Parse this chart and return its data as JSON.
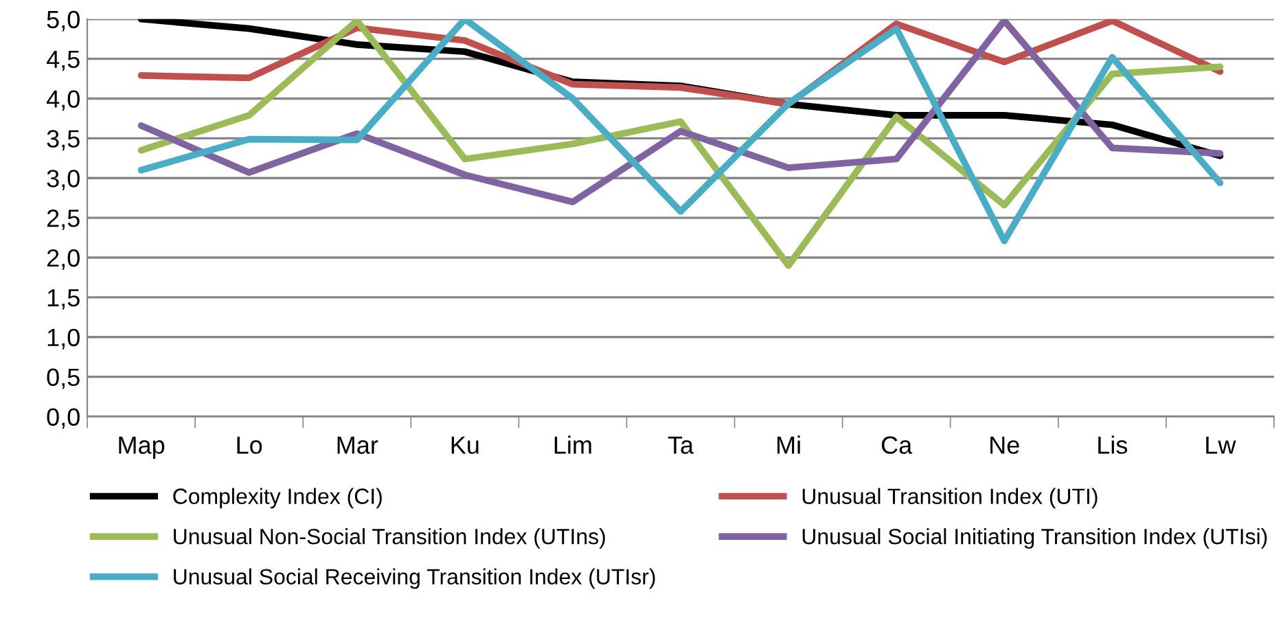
{
  "chart_data": {
    "type": "line",
    "categories": [
      "Map",
      "Lo",
      "Mar",
      "Ku",
      "Lim",
      "Ta",
      "Mi",
      "Ca",
      "Ne",
      "Lis",
      "Lw"
    ],
    "series": [
      {
        "name": "Complexity Index (CI)",
        "color": "#000000",
        "values": [
          5.0,
          4.88,
          4.68,
          4.59,
          4.21,
          4.16,
          3.93,
          3.79,
          3.79,
          3.67,
          3.28
        ]
      },
      {
        "name": "Unusual Transition Index (UTI)",
        "color": "#c0504d",
        "values": [
          4.29,
          4.26,
          4.89,
          4.73,
          4.18,
          4.14,
          3.93,
          4.94,
          4.46,
          4.98,
          4.34
        ]
      },
      {
        "name": "Unusual Non-Social Transition Index (UTIns)",
        "color": "#9bbb59",
        "values": [
          3.35,
          3.79,
          4.98,
          3.24,
          3.43,
          3.71,
          1.9,
          3.77,
          2.66,
          4.31,
          4.4
        ]
      },
      {
        "name": "Unusual Social Initiating Transition Index (UTIsi)",
        "color": "#8064a2",
        "values": [
          3.66,
          3.07,
          3.56,
          3.04,
          2.7,
          3.59,
          3.13,
          3.24,
          4.98,
          3.38,
          3.31
        ]
      },
      {
        "name": "Unusual Social Receiving Transition Index (UTIsr)",
        "color": "#4bacc6",
        "values": [
          3.1,
          3.49,
          3.48,
          5.0,
          4.0,
          2.58,
          3.94,
          4.88,
          2.21,
          4.52,
          2.94
        ]
      }
    ],
    "ylim": [
      0,
      5
    ],
    "yticks": [
      {
        "value": 0,
        "label": "0,0"
      },
      {
        "value": 0.5,
        "label": "0,5"
      },
      {
        "value": 1,
        "label": "1,0"
      },
      {
        "value": 1.5,
        "label": "1,5"
      },
      {
        "value": 2,
        "label": "2,0"
      },
      {
        "value": 2.5,
        "label": "2,5"
      },
      {
        "value": 3,
        "label": "3,0"
      },
      {
        "value": 3.5,
        "label": "3,5"
      },
      {
        "value": 4,
        "label": "4,0"
      },
      {
        "value": 4.5,
        "label": "4,5"
      },
      {
        "value": 5,
        "label": "5,0"
      }
    ],
    "grid": "y",
    "legend": "bottom",
    "marker": "none",
    "line_style": "solid"
  }
}
